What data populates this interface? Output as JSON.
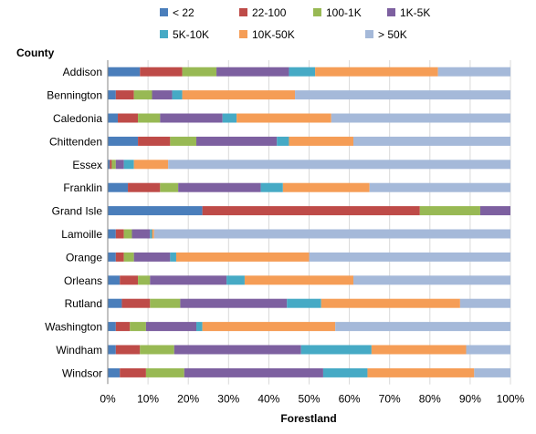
{
  "chart_data": {
    "type": "bar",
    "stacked": true,
    "orientation": "horizontal",
    "percent": true,
    "title": "",
    "xlabel": "Forestland",
    "ylabel": "County",
    "xlim": [
      0,
      100
    ],
    "x_ticks": [
      "0%",
      "10%",
      "20%",
      "30%",
      "40%",
      "50%",
      "60%",
      "70%",
      "80%",
      "90%",
      "100%"
    ],
    "grid": true,
    "legend_position": "top",
    "categories": [
      "Addison",
      "Bennington",
      "Caledonia",
      "Chittenden",
      "Essex",
      "Franklin",
      "Grand Isle",
      "Lamoille",
      "Orange",
      "Orleans",
      "Rutland",
      "Washington",
      "Windham",
      "Windsor"
    ],
    "series": [
      {
        "name": "< 22",
        "color": "#4a7ebb",
        "values": [
          8,
          2,
          2.5,
          7.5,
          0.5,
          5,
          23.5,
          2,
          2,
          3,
          3.5,
          2,
          2,
          3
        ]
      },
      {
        "name": "22-100",
        "color": "#be4b48",
        "values": [
          10.5,
          4.5,
          5,
          8,
          0.5,
          8,
          54,
          2,
          2,
          4.5,
          7,
          3.5,
          6,
          6.5
        ]
      },
      {
        "name": "100-1K",
        "color": "#98b954",
        "values": [
          8.5,
          4.5,
          5.5,
          6.5,
          1,
          4.5,
          15,
          2,
          2.5,
          3,
          7.5,
          4,
          8.5,
          9.5
        ]
      },
      {
        "name": "1K-5K",
        "color": "#7d60a0",
        "values": [
          18,
          5,
          15.5,
          20,
          2,
          20.5,
          7.5,
          4.5,
          9,
          19,
          26.5,
          12.5,
          31.5,
          34.5
        ]
      },
      {
        "name": "5K-10K",
        "color": "#46aac5",
        "values": [
          6.5,
          2.5,
          3.5,
          3,
          2.5,
          5.5,
          0,
          0.5,
          1.5,
          4.5,
          8.5,
          1.5,
          17.5,
          11
        ]
      },
      {
        "name": "10K-50K",
        "color": "#f59d56",
        "values": [
          30.5,
          28,
          23.5,
          16,
          8.5,
          21.5,
          0,
          0.5,
          33,
          27,
          34.5,
          33,
          23.5,
          26.5
        ]
      },
      {
        "name": "> 50K",
        "color": "#a5b9d9",
        "values": [
          18,
          53.5,
          44.5,
          39,
          85,
          35,
          0,
          88.5,
          50,
          39,
          12.5,
          43.5,
          11,
          9
        ]
      }
    ]
  }
}
